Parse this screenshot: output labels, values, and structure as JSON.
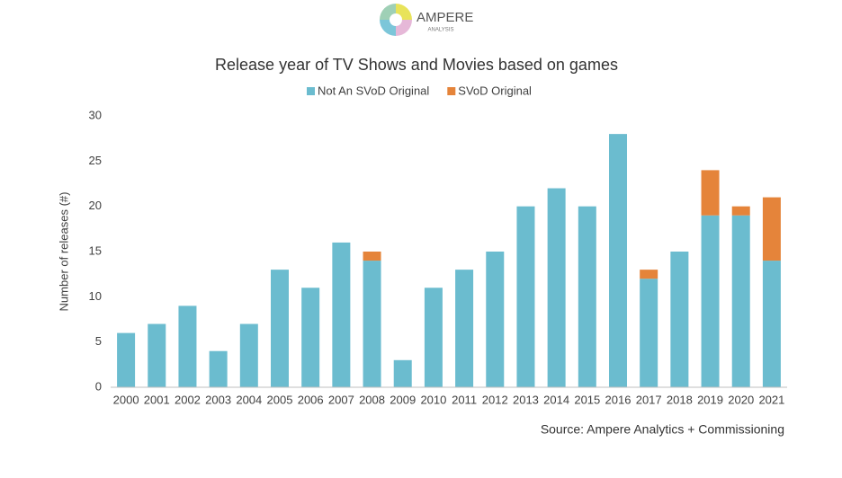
{
  "logo": {
    "name": "AMPERE",
    "subtitle": "ANALYSIS"
  },
  "chart_data": {
    "type": "stacked-bar",
    "title": "Release year of TV Shows and Movies based on games",
    "y_label": "Number of releases (#)",
    "source": "Source: Ampere Analytics + Commissioning",
    "categories": [
      "2000",
      "2001",
      "2002",
      "2003",
      "2004",
      "2005",
      "2006",
      "2007",
      "2008",
      "2009",
      "2010",
      "2011",
      "2012",
      "2013",
      "2014",
      "2015",
      "2016",
      "2017",
      "2018",
      "2019",
      "2020",
      "2021"
    ],
    "series": [
      {
        "name": "Not An SVoD Original",
        "color": "#6bbccf",
        "values": [
          6,
          7,
          9,
          4,
          7,
          13,
          11,
          16,
          14,
          3,
          11,
          13,
          15,
          20,
          22,
          20,
          28,
          12,
          15,
          19,
          19,
          14
        ]
      },
      {
        "name": "SVoD Original",
        "color": "#e5843a",
        "values": [
          0,
          0,
          0,
          0,
          0,
          0,
          0,
          0,
          1,
          0,
          0,
          0,
          0,
          0,
          0,
          0,
          0,
          1,
          0,
          5,
          1,
          7
        ]
      }
    ],
    "ylim": [
      0,
      30
    ],
    "yticks": [
      0,
      5,
      10,
      15,
      20,
      25,
      30
    ],
    "grid": false,
    "legend": "top"
  }
}
